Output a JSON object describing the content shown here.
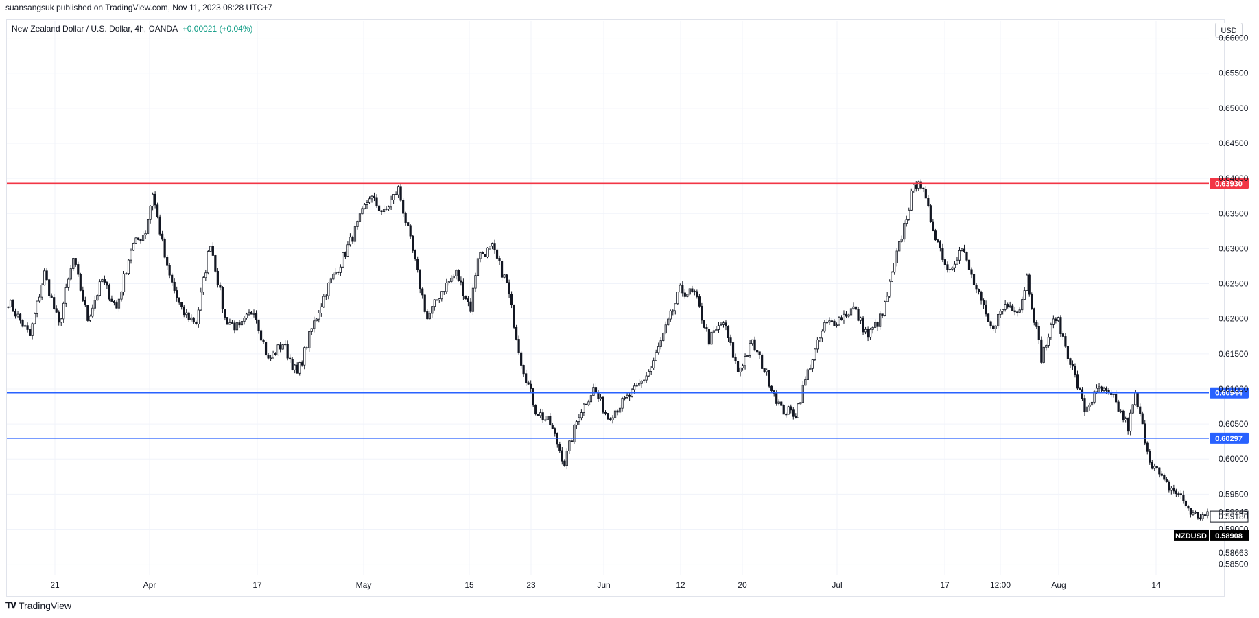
{
  "header": {
    "publisher": "suansangsuk published on TradingView.com, Nov 11, 2023 08:28 UTC+7"
  },
  "legend": {
    "symbol_text": "New Zealand Dollar / U.S. Dollar, 4h, OANDA",
    "change": "+0.00021 (+0.04%)"
  },
  "currency_button": "USD",
  "footer": {
    "brand": "TradingView"
  },
  "colors": {
    "resistance": "#f23645",
    "support": "#2962ff",
    "candle": "#131722",
    "grid": "#f0f3fa"
  },
  "chart_data": {
    "type": "candlestick",
    "symbol": "NZDUSD",
    "timeframe": "4h",
    "ylim": [
      0.5835,
      0.6625
    ],
    "y_ticks": [
      0.585,
      0.58663,
      0.59,
      0.5918,
      0.59245,
      0.595,
      0.6,
      0.605,
      0.61,
      0.615,
      0.62,
      0.625,
      0.63,
      0.635,
      0.64,
      0.645,
      0.65,
      0.655,
      0.66
    ],
    "y_tick_labels": [
      "0.58500",
      "0.58663",
      "0.59000",
      "0.59180",
      "0.59245",
      "0.59500",
      "0.60000",
      "0.60500",
      "0.61000",
      "0.61500",
      "0.62000",
      "0.62500",
      "0.63000",
      "0.63500",
      "0.64000",
      "0.64500",
      "0.65000",
      "0.65500",
      "0.66000"
    ],
    "x_tick_labels": [
      "21",
      "Apr",
      "17",
      "May",
      "15",
      "23",
      "Jun",
      "12",
      "20",
      "Jul",
      "17",
      "12:00",
      "Aug",
      "14"
    ],
    "horizontal_lines": [
      {
        "value": 0.6393,
        "label": "0.63930",
        "color": "#f23645"
      },
      {
        "value": 0.60944,
        "label": "0.60944",
        "color": "#2962ff"
      },
      {
        "value": 0.60297,
        "label": "0.60297",
        "color": "#2962ff"
      }
    ],
    "last_price": {
      "symbol_label": "NZDUSD",
      "value": 0.58908,
      "label": "0.58908"
    },
    "close_path_anchors": [
      [
        0,
        0.6225
      ],
      [
        3,
        0.6175
      ],
      [
        5,
        0.6265
      ],
      [
        7,
        0.619
      ],
      [
        9,
        0.6285
      ],
      [
        11,
        0.62
      ],
      [
        13,
        0.6255
      ],
      [
        15,
        0.6215
      ],
      [
        17,
        0.63
      ],
      [
        19,
        0.6325
      ],
      [
        20,
        0.638
      ],
      [
        22,
        0.627
      ],
      [
        24,
        0.621
      ],
      [
        26,
        0.6195
      ],
      [
        28,
        0.631
      ],
      [
        30,
        0.62
      ],
      [
        32,
        0.6185
      ],
      [
        34,
        0.6215
      ],
      [
        36,
        0.614
      ],
      [
        38,
        0.6165
      ],
      [
        40,
        0.612
      ],
      [
        42,
        0.6185
      ],
      [
        44,
        0.624
      ],
      [
        46,
        0.628
      ],
      [
        48,
        0.6325
      ],
      [
        50,
        0.6375
      ],
      [
        52,
        0.635
      ],
      [
        54,
        0.6385
      ],
      [
        56,
        0.6295
      ],
      [
        58,
        0.62
      ],
      [
        60,
        0.624
      ],
      [
        62,
        0.6265
      ],
      [
        64,
        0.6215
      ],
      [
        65,
        0.629
      ],
      [
        67,
        0.63
      ],
      [
        69,
        0.625
      ],
      [
        71,
        0.614
      ],
      [
        73,
        0.607
      ],
      [
        75,
        0.605
      ],
      [
        77,
        0.5995
      ],
      [
        79,
        0.6065
      ],
      [
        81,
        0.61
      ],
      [
        83,
        0.606
      ],
      [
        85,
        0.608
      ],
      [
        87,
        0.61
      ],
      [
        89,
        0.613
      ],
      [
        91,
        0.6185
      ],
      [
        93,
        0.624
      ],
      [
        95,
        0.6235
      ],
      [
        97,
        0.617
      ],
      [
        99,
        0.6195
      ],
      [
        101,
        0.6125
      ],
      [
        103,
        0.6165
      ],
      [
        105,
        0.612
      ],
      [
        107,
        0.607
      ],
      [
        109,
        0.6065
      ],
      [
        111,
        0.6135
      ],
      [
        113,
        0.619
      ],
      [
        115,
        0.62
      ],
      [
        117,
        0.6215
      ],
      [
        119,
        0.6175
      ],
      [
        121,
        0.6205
      ],
      [
        123,
        0.629
      ],
      [
        125,
        0.6375
      ],
      [
        126,
        0.6402
      ],
      [
        128,
        0.633
      ],
      [
        130,
        0.627
      ],
      [
        132,
        0.63
      ],
      [
        134,
        0.624
      ],
      [
        136,
        0.6185
      ],
      [
        138,
        0.622
      ],
      [
        140,
        0.6215
      ],
      [
        141,
        0.626
      ],
      [
        143,
        0.6145
      ],
      [
        145,
        0.6205
      ],
      [
        147,
        0.614
      ],
      [
        149,
        0.607
      ],
      [
        151,
        0.61
      ],
      [
        153,
        0.6085
      ],
      [
        155,
        0.6045
      ],
      [
        156,
        0.609
      ],
      [
        158,
        0.6
      ],
      [
        160,
        0.5965
      ],
      [
        162,
        0.595
      ],
      [
        164,
        0.592
      ],
      [
        166,
        0.5918
      ]
    ]
  }
}
